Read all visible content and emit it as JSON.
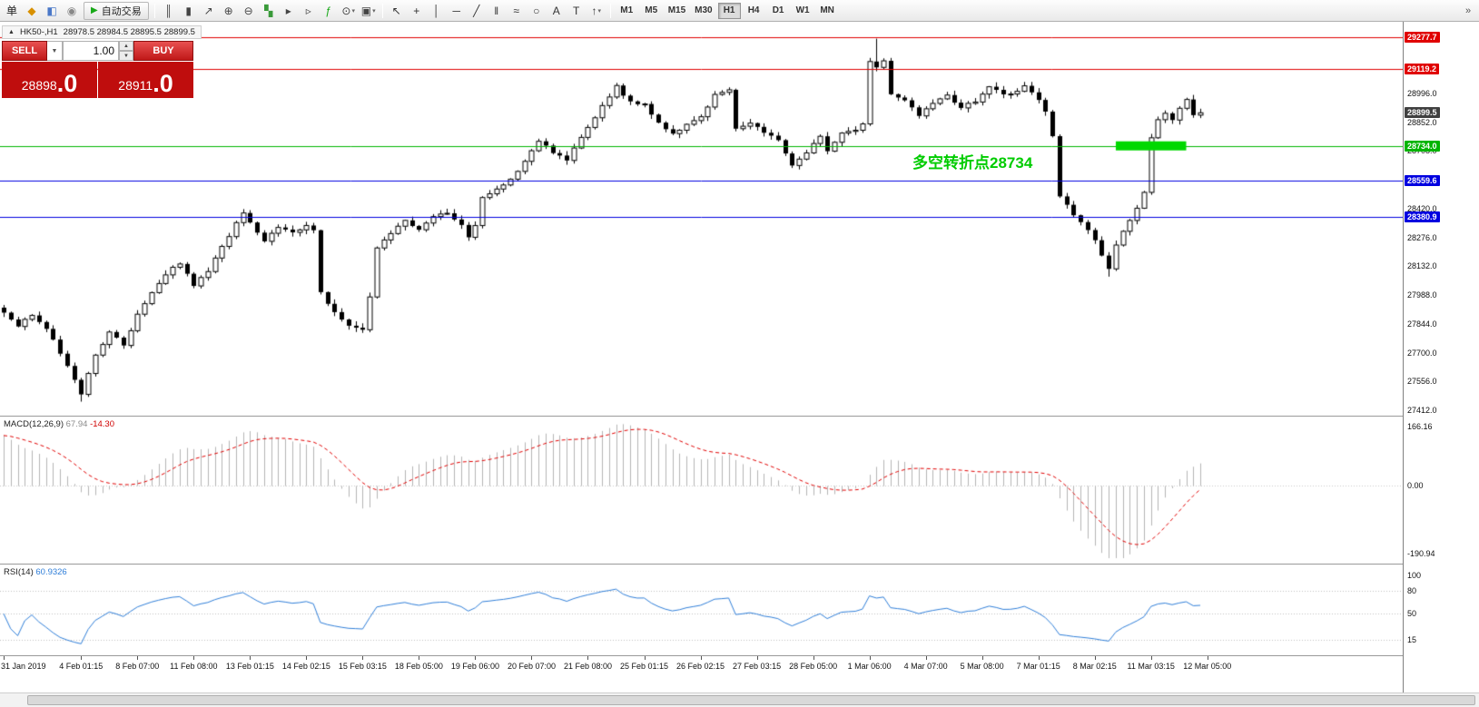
{
  "toolbar": {
    "dropdown_glyph": "▾",
    "overflow_glyph": "»",
    "left_icons": [
      {
        "name": "new-order-icon",
        "glyph": "单",
        "color": "#222222"
      },
      {
        "name": "market-watch-icon",
        "glyph": "◆",
        "color": "#d89000"
      },
      {
        "name": "data-window-icon",
        "glyph": "◧",
        "color": "#4a78c8"
      },
      {
        "name": "navigator-icon",
        "glyph": "◉",
        "color": "#888888"
      }
    ],
    "autotrading": {
      "label": "自动交易",
      "icon_glyph": "▶",
      "icon_color": "#18a818"
    },
    "chart_icons": [
      {
        "name": "bar-chart-icon",
        "glyph": "║",
        "color": "#444444"
      },
      {
        "name": "candlestick-chart-icon",
        "glyph": "▮",
        "color": "#444444"
      },
      {
        "name": "line-chart-icon",
        "glyph": "↗",
        "color": "#444444"
      },
      {
        "name": "zoom-in-icon",
        "glyph": "⊕",
        "color": "#444444"
      },
      {
        "name": "zoom-out-icon",
        "glyph": "⊖",
        "color": "#444444"
      },
      {
        "name": "tile-windows-icon",
        "glyph": "▚",
        "color": "#3a9a3a"
      },
      {
        "name": "auto-scroll-icon",
        "glyph": "▸",
        "color": "#444444"
      },
      {
        "name": "chart-shift-icon",
        "glyph": "▹",
        "color": "#444444"
      },
      {
        "name": "indicators-icon",
        "glyph": "ƒ",
        "color": "#18a818"
      },
      {
        "name": "periods-icon",
        "glyph": "⊙",
        "color": "#444444",
        "dropdown": true
      },
      {
        "name": "templates-icon",
        "glyph": "▣",
        "color": "#444444",
        "dropdown": true
      }
    ],
    "tool_icons": [
      {
        "name": "cursor-icon",
        "glyph": "↖",
        "color": "#333333"
      },
      {
        "name": "crosshair-icon",
        "glyph": "+",
        "color": "#333333"
      },
      {
        "name": "vertical-line-icon",
        "glyph": "│",
        "color": "#333333"
      },
      {
        "name": "horizontal-line-icon",
        "glyph": "─",
        "color": "#333333"
      },
      {
        "name": "trendline-icon",
        "glyph": "╱",
        "color": "#333333"
      },
      {
        "name": "channel-icon",
        "glyph": "‖",
        "color": "#333333"
      },
      {
        "name": "fibonacci-icon",
        "glyph": "≈",
        "color": "#333333"
      },
      {
        "name": "shapes-icon",
        "glyph": "○",
        "color": "#333333"
      },
      {
        "name": "text-icon",
        "glyph": "A",
        "color": "#333333"
      },
      {
        "name": "text-label-icon",
        "glyph": "T",
        "color": "#333333"
      },
      {
        "name": "arrows-icon",
        "glyph": "↑",
        "color": "#333333",
        "dropdown": true
      }
    ],
    "timeframes": [
      {
        "label": "M1",
        "active": false
      },
      {
        "label": "M5",
        "active": false
      },
      {
        "label": "M15",
        "active": false
      },
      {
        "label": "M30",
        "active": false
      },
      {
        "label": "H1",
        "active": true
      },
      {
        "label": "H4",
        "active": false
      },
      {
        "label": "D1",
        "active": false
      },
      {
        "label": "W1",
        "active": false
      },
      {
        "label": "MN",
        "active": false
      }
    ]
  },
  "chart": {
    "tab": {
      "collapse_glyph": "▲",
      "symbol": "HK50-,H1",
      "ohlc": "28978.5 28984.5 28895.5 28899.5"
    },
    "one_click": {
      "sell_label": "SELL",
      "buy_label": "BUY",
      "volume": "1.00",
      "caret_glyph": "▼",
      "spin_up": "▲",
      "spin_down": "▼",
      "sell_price_int": "28898",
      "sell_price_frac": ".0",
      "buy_price_int": "28911",
      "buy_price_frac": ".0"
    },
    "annotation": {
      "text": "多空转折点28734",
      "color": "#00cc00"
    },
    "price_axis_labels": [
      "28996.0",
      "28852.0",
      "28708.0",
      "28564.0",
      "28420.0",
      "28276.0",
      "28132.0",
      "27988.0",
      "27844.0",
      "27700.0",
      "27556.0",
      "27412.0"
    ],
    "levels": [
      {
        "price": 29277.7,
        "label": "29277.7",
        "color": "#e00000",
        "kind": "line"
      },
      {
        "price": 29119.2,
        "label": "29119.2",
        "color": "#e00000",
        "kind": "line"
      },
      {
        "price": 28899.5,
        "label": "28899.5",
        "color": "#404040",
        "kind": "bid"
      },
      {
        "price": 28734.0,
        "label": "28734.0",
        "color": "#00b400",
        "kind": "line"
      },
      {
        "price": 28559.6,
        "label": "28559.6",
        "color": "#0000e0",
        "kind": "line"
      },
      {
        "price": 28380.9,
        "label": "28380.9",
        "color": "#0000e0",
        "kind": "line"
      }
    ],
    "highlight": {
      "price": 28734.0,
      "from_index": 158,
      "to_index": 168,
      "color": "#00d800"
    }
  },
  "chart_data": {
    "type": "candlestick",
    "symbol": "HK50-",
    "timeframe": "H1",
    "title": "HK50-,H1 28978.5 28984.5 28895.5 28899.5",
    "ohlc_display": {
      "open": 28978.5,
      "high": 28984.5,
      "low": 28895.5,
      "close": 28899.5
    },
    "candle_count": 171,
    "last_close": 28899.5,
    "price_axis": {
      "min": 27412.0,
      "max": 29313.0,
      "step": 144.0
    },
    "close_waypoints": [
      [
        0,
        27900
      ],
      [
        2,
        27830
      ],
      [
        4,
        27890
      ],
      [
        6,
        27820
      ],
      [
        8,
        27700
      ],
      [
        9,
        27640
      ],
      [
        11,
        27490
      ],
      [
        13,
        27690
      ],
      [
        15,
        27800
      ],
      [
        16,
        27770
      ],
      [
        17,
        27740
      ],
      [
        19,
        27890
      ],
      [
        21,
        28000
      ],
      [
        23,
        28090
      ],
      [
        25,
        28150
      ],
      [
        27,
        28040
      ],
      [
        29,
        28110
      ],
      [
        31,
        28230
      ],
      [
        34,
        28400
      ],
      [
        36,
        28300
      ],
      [
        37,
        28260
      ],
      [
        39,
        28320
      ],
      [
        41,
        28300
      ],
      [
        43,
        28340
      ],
      [
        44,
        28310
      ],
      [
        45,
        28000
      ],
      [
        47,
        27900
      ],
      [
        49,
        27840
      ],
      [
        51,
        27810
      ],
      [
        52,
        27980
      ],
      [
        53,
        28230
      ],
      [
        55,
        28300
      ],
      [
        57,
        28360
      ],
      [
        59,
        28320
      ],
      [
        61,
        28380
      ],
      [
        63,
        28400
      ],
      [
        65,
        28340
      ],
      [
        66,
        28280
      ],
      [
        67,
        28330
      ],
      [
        68,
        28470
      ],
      [
        70,
        28520
      ],
      [
        72,
        28570
      ],
      [
        74,
        28650
      ],
      [
        76,
        28760
      ],
      [
        78,
        28700
      ],
      [
        80,
        28660
      ],
      [
        82,
        28780
      ],
      [
        83,
        28830
      ],
      [
        85,
        28930
      ],
      [
        87,
        29030
      ],
      [
        89,
        28950
      ],
      [
        91,
        28940
      ],
      [
        93,
        28850
      ],
      [
        95,
        28790
      ],
      [
        97,
        28840
      ],
      [
        99,
        28880
      ],
      [
        101,
        28990
      ],
      [
        103,
        29020
      ],
      [
        104,
        28820
      ],
      [
        106,
        28850
      ],
      [
        108,
        28800
      ],
      [
        110,
        28760
      ],
      [
        112,
        28640
      ],
      [
        114,
        28700
      ],
      [
        116,
        28780
      ],
      [
        117,
        28710
      ],
      [
        119,
        28800
      ],
      [
        121,
        28810
      ],
      [
        122,
        28850
      ],
      [
        123,
        29150
      ],
      [
        124,
        29120
      ],
      [
        125,
        29160
      ],
      [
        126,
        28990
      ],
      [
        128,
        28960
      ],
      [
        130,
        28890
      ],
      [
        132,
        28940
      ],
      [
        134,
        28985
      ],
      [
        136,
        28920
      ],
      [
        138,
        28960
      ],
      [
        140,
        29030
      ],
      [
        142,
        28985
      ],
      [
        144,
        29010
      ],
      [
        145,
        29030
      ],
      [
        147,
        28960
      ],
      [
        148,
        28900
      ],
      [
        149,
        28780
      ],
      [
        150,
        28480
      ],
      [
        152,
        28390
      ],
      [
        154,
        28310
      ],
      [
        155,
        28260
      ],
      [
        156,
        28190
      ],
      [
        157,
        28120
      ],
      [
        158,
        28240
      ],
      [
        159,
        28300
      ],
      [
        160,
        28360
      ],
      [
        161,
        28420
      ],
      [
        162,
        28500
      ],
      [
        163,
        28780
      ],
      [
        164,
        28860
      ],
      [
        165,
        28900
      ],
      [
        166,
        28870
      ],
      [
        167,
        28920
      ],
      [
        168,
        28960
      ],
      [
        169,
        28890
      ],
      [
        170,
        28899.5
      ]
    ],
    "wick_overrides": [
      {
        "i": 11,
        "low": 27455
      },
      {
        "i": 124,
        "high": 29270
      },
      {
        "i": 157,
        "low": 28080
      }
    ],
    "time_labels": [
      {
        "label": "31 Jan 2019",
        "index": 0
      },
      {
        "label": "4 Feb 01:15",
        "index": 11
      },
      {
        "label": "8 Feb 07:00",
        "index": 19
      },
      {
        "label": "11 Feb 08:00",
        "index": 27
      },
      {
        "label": "13 Feb 01:15",
        "index": 35
      },
      {
        "label": "14 Feb 02:15",
        "index": 43
      },
      {
        "label": "15 Feb 03:15",
        "index": 51
      },
      {
        "label": "18 Feb 05:00",
        "index": 59
      },
      {
        "label": "19 Feb 06:00",
        "index": 67
      },
      {
        "label": "20 Feb 07:00",
        "index": 75
      },
      {
        "label": "21 Feb 08:00",
        "index": 83
      },
      {
        "label": "25 Feb 01:15",
        "index": 91
      },
      {
        "label": "26 Feb 02:15",
        "index": 99
      },
      {
        "label": "27 Feb 03:15",
        "index": 107
      },
      {
        "label": "28 Feb 05:00",
        "index": 115
      },
      {
        "label": "1 Mar 06:00",
        "index": 123
      },
      {
        "label": "4 Mar 07:00",
        "index": 131
      },
      {
        "label": "5 Mar 08:00",
        "index": 139
      },
      {
        "label": "7 Mar 01:15",
        "index": 147
      },
      {
        "label": "8 Mar 02:15",
        "index": 155
      },
      {
        "label": "11 Mar 03:15",
        "index": 163
      },
      {
        "label": "12 Mar 05:00",
        "index": 171
      }
    ]
  },
  "macd": {
    "title": "MACD(12,26,9)",
    "value": "67.94",
    "signal_value": "-14.30",
    "axis_max": "166.16",
    "axis_zero": "0.00",
    "axis_min": "-190.94",
    "fast": 12,
    "slow": 26,
    "signal": 9,
    "histogram_color": "#b4b4b4",
    "signal_color": "#e00000"
  },
  "rsi": {
    "title": "RSI(14)",
    "value": "60.9326",
    "period": 14,
    "axis_labels": [
      "100",
      "80",
      "50",
      "15"
    ],
    "levels": [
      80,
      50,
      15
    ],
    "line_color": "#2f7ed8"
  }
}
